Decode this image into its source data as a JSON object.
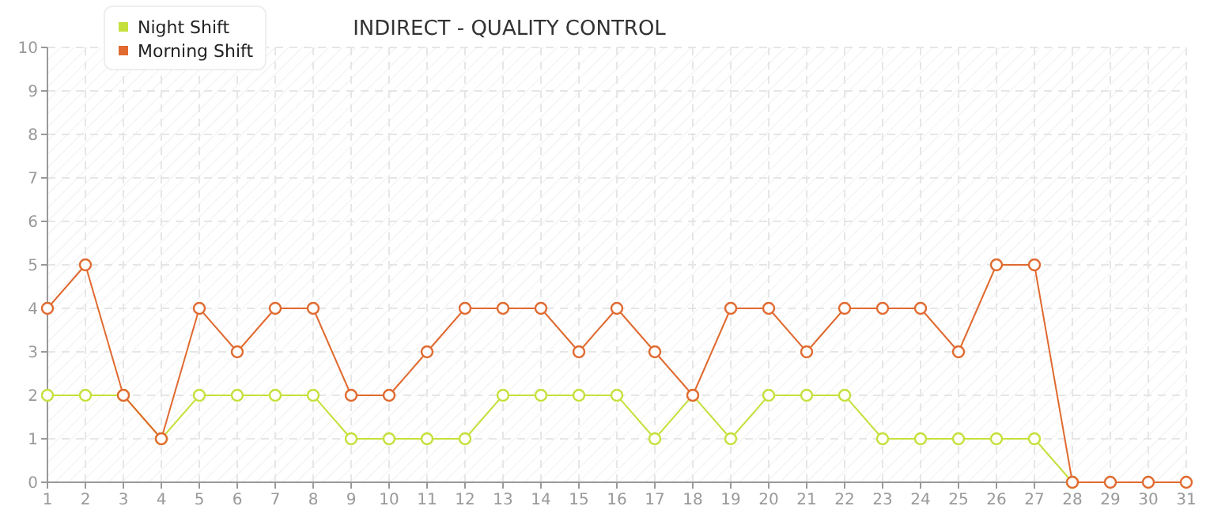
{
  "chart_data": {
    "type": "line",
    "title": "INDIRECT - QUALITY CONTROL",
    "x": [
      1,
      2,
      3,
      4,
      5,
      6,
      7,
      8,
      9,
      10,
      11,
      12,
      13,
      14,
      15,
      16,
      17,
      18,
      19,
      20,
      21,
      22,
      23,
      24,
      25,
      26,
      27,
      28,
      29,
      30,
      31
    ],
    "series": [
      {
        "name": "Night Shift",
        "color": "#c5e03c",
        "values": [
          2,
          2,
          2,
          1,
          2,
          2,
          2,
          2,
          1,
          1,
          1,
          1,
          2,
          2,
          2,
          2,
          1,
          2,
          1,
          2,
          2,
          2,
          1,
          1,
          1,
          1,
          1,
          0,
          null,
          null,
          null
        ]
      },
      {
        "name": "Morning Shift",
        "color": "#e06a30",
        "values": [
          4,
          5,
          2,
          1,
          4,
          3,
          4,
          4,
          2,
          2,
          3,
          4,
          4,
          4,
          3,
          4,
          3,
          2,
          4,
          4,
          3,
          4,
          4,
          4,
          3,
          5,
          5,
          0,
          0,
          0,
          0
        ]
      }
    ],
    "xlim": [
      1,
      31
    ],
    "xticks": [
      1,
      2,
      3,
      4,
      5,
      6,
      7,
      8,
      9,
      10,
      11,
      12,
      13,
      14,
      15,
      16,
      17,
      18,
      19,
      20,
      21,
      22,
      23,
      24,
      25,
      26,
      27,
      28,
      29,
      30,
      31
    ],
    "ylim": [
      0,
      10
    ],
    "yticks": [
      0,
      1,
      2,
      3,
      4,
      5,
      6,
      7,
      8,
      9,
      10
    ],
    "grid": true,
    "legend": "top left",
    "marker": "circle",
    "line_style": "solid"
  }
}
